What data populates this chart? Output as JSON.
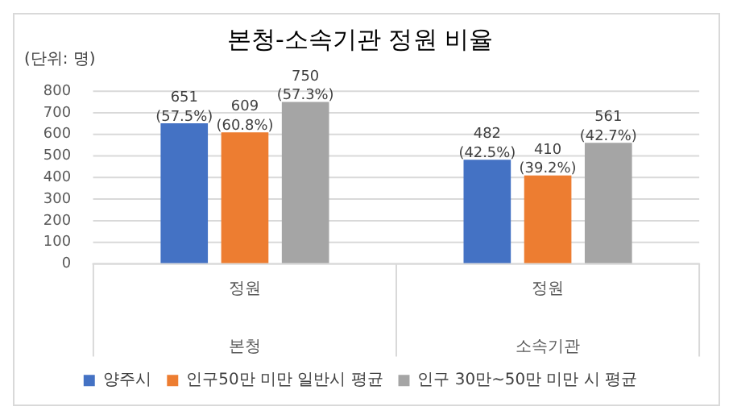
{
  "chart_data": {
    "type": "bar",
    "title": "본청-소속기관 정원 비율",
    "ylabel": "(단위: 명)",
    "categories": [
      "정원",
      "정원"
    ],
    "annotations": [
      "본청",
      "소속기관"
    ],
    "series": [
      {
        "name": "양주시",
        "color": "#4472c4",
        "values": [
          651,
          482
        ],
        "value_labels": [
          "651 (57.5%)",
          "482 (42.5%)"
        ]
      },
      {
        "name": "인구50만 미만 일반시 평균",
        "color": "#ed7d31",
        "values": [
          609,
          410
        ],
        "value_labels": [
          "609 (60.8%)",
          "410 (39.2%)"
        ]
      },
      {
        "name": "인구 30만~50만 미만 시 평균",
        "color": "#a5a5a5",
        "values": [
          750,
          561
        ],
        "value_labels": [
          "750 (57.3%)",
          "561 (42.7%)"
        ]
      }
    ],
    "ylim": [
      0,
      800
    ],
    "yticks": [
      0,
      100,
      200,
      300,
      400,
      500,
      600,
      700,
      800
    ],
    "grid": "y",
    "legend": "bottom"
  }
}
